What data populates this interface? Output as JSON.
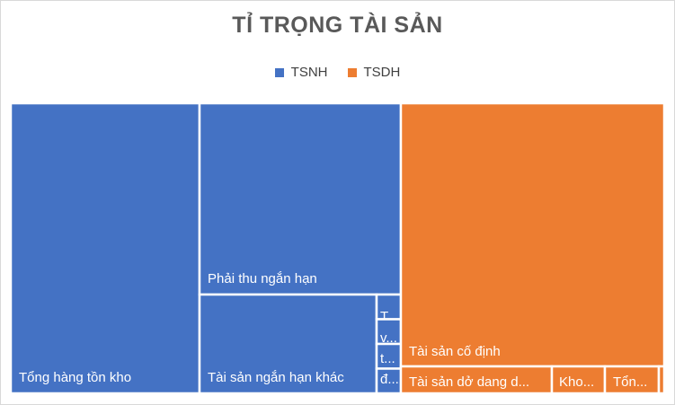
{
  "chart_data": {
    "type": "treemap",
    "title": "TỈ TRỌNG TÀI SẢN",
    "legend_position": "top",
    "series": [
      {
        "name": "TSNH",
        "color": "#4472C4"
      },
      {
        "name": "TSDH",
        "color": "#ED7D31"
      }
    ],
    "items": [
      {
        "label": "Tổng hàng tồn kho",
        "display": "Tổng hàng tồn kho",
        "group": "TSNH",
        "value": 26.5
      },
      {
        "label": "Phải thu ngắn hạn",
        "display": "Phải thu ngắn hạn",
        "group": "TSNH",
        "value": 14.0
      },
      {
        "label": "Tài sản ngắn hạn khác",
        "display": "Tài sản ngắn hạn khác",
        "group": "TSNH",
        "value": 10.5
      },
      {
        "label": "T...",
        "display": "T...",
        "group": "TSNH",
        "value": 0.4
      },
      {
        "label": "v...",
        "display": "v...",
        "group": "TSNH",
        "value": 0.4
      },
      {
        "label": "t...",
        "display": "t...",
        "group": "TSNH",
        "value": 0.4
      },
      {
        "label": "đ...",
        "display": "đ...",
        "group": "TSNH",
        "value": 0.4
      },
      {
        "label": "Tài sản cố định",
        "display": "Tài sản cố định",
        "group": "TSDH",
        "value": 34.0
      },
      {
        "label": "Tài sản dở dang d...",
        "display": "Tài sản dở dang d...",
        "group": "TSDH",
        "value": 5.0
      },
      {
        "label": "Kho...",
        "display": "Kho...",
        "group": "TSDH",
        "value": 1.8
      },
      {
        "label": "Tổn...",
        "display": "Tổn...",
        "group": "TSDH",
        "value": 1.8
      },
      {
        "label": "",
        "display": "",
        "group": "TSDH",
        "value": 0.2
      }
    ]
  }
}
